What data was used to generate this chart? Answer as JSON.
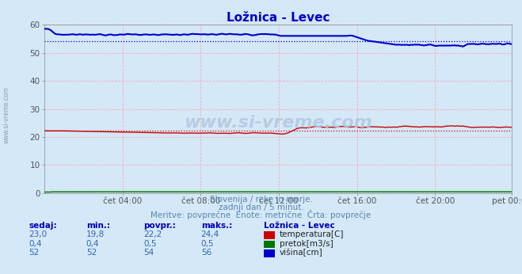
{
  "title": "Ložnica - Levec",
  "bg_color": "#d4e8f8",
  "plot_bg_color": "#d4e8f8",
  "grid_color": "#ffaaaa",
  "xlabel_ticks": [
    "čet 04:00",
    "čet 08:00",
    "čet 12:00",
    "čet 16:00",
    "čet 20:00",
    "pet 00:00"
  ],
  "ylabel_ticks": [
    0,
    10,
    20,
    30,
    40,
    50,
    60
  ],
  "ylim": [
    0,
    60
  ],
  "xlim": [
    0,
    287
  ],
  "n_points": 288,
  "temp_color": "#cc0000",
  "pretok_color": "#007700",
  "visina_color": "#0000cc",
  "temp_avg": 22.2,
  "pretok_avg": 0.5,
  "visina_avg": 54,
  "subtitle1": "Slovenija / reke in morje.",
  "subtitle2": "zadnji dan / 5 minut.",
  "subtitle3": "Meritve: povprečne  Enote: metrične  Črta: povprečje",
  "legend_title": "Ložnica - Levec",
  "label_temp": "temperatura[C]",
  "label_pretok": "pretok[m3/s]",
  "label_visina": "višina[cm]",
  "watermark": "www.si-vreme.com",
  "col_headers": [
    "sedaj:",
    "min.:",
    "povpr.:",
    "maks.:"
  ],
  "col_values_temp": [
    "23,0",
    "19,8",
    "22,2",
    "24,4"
  ],
  "col_values_pretok": [
    "0,4",
    "0,4",
    "0,5",
    "0,5"
  ],
  "col_values_visina": [
    "52",
    "52",
    "54",
    "56"
  ],
  "text_color": "#5588aa",
  "header_color": "#0000bb",
  "val_color": "#3366aa",
  "tick_color": "#555555",
  "title_color": "#0000cc",
  "watermark_color": "#b0c8e0",
  "spine_color": "#888888",
  "sidebar_color": "#7799aa"
}
